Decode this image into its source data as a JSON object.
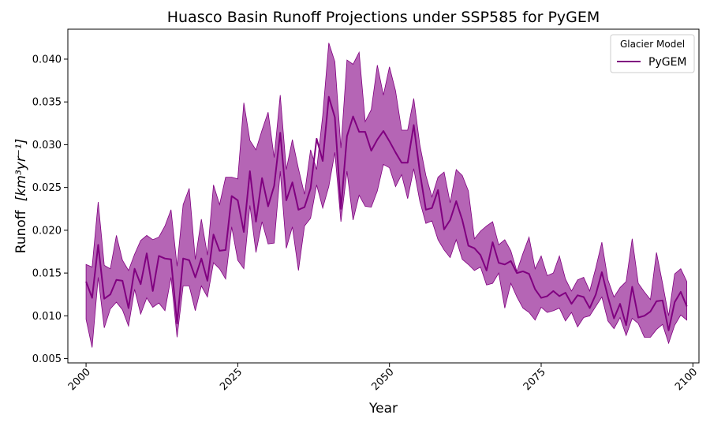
{
  "chart_data": {
    "type": "line",
    "title": "Huasco Basin Runoff Projections under SSP585 for PyGEM",
    "xlabel": "Year",
    "ylabel": "Runoff",
    "ylabel_unit": "[km³yr⁻¹]",
    "xlim": [
      1997,
      2101
    ],
    "ylim": [
      0.0045,
      0.0435
    ],
    "xticks": [
      2000,
      2025,
      2050,
      2075,
      2100
    ],
    "yticks": [
      0.005,
      0.01,
      0.015,
      0.02,
      0.025,
      0.03,
      0.035,
      0.04
    ],
    "ytick_labels": [
      "0.005",
      "0.010",
      "0.015",
      "0.020",
      "0.025",
      "0.030",
      "0.035",
      "0.040"
    ],
    "grid": false,
    "legend": {
      "title": "Glacier Model",
      "position": "top-right"
    },
    "colors": {
      "line": "#800080",
      "band": "#b565b5"
    },
    "series": [
      {
        "name": "PyGEM",
        "x": [
          2000,
          2001,
          2002,
          2003,
          2004,
          2005,
          2006,
          2007,
          2008,
          2009,
          2010,
          2011,
          2012,
          2013,
          2014,
          2015,
          2016,
          2017,
          2018,
          2019,
          2020,
          2021,
          2022,
          2023,
          2024,
          2025,
          2026,
          2027,
          2028,
          2029,
          2030,
          2031,
          2032,
          2033,
          2034,
          2035,
          2036,
          2037,
          2038,
          2039,
          2040,
          2041,
          2042,
          2043,
          2044,
          2045,
          2046,
          2047,
          2048,
          2049,
          2050,
          2051,
          2052,
          2053,
          2054,
          2055,
          2056,
          2057,
          2058,
          2059,
          2060,
          2061,
          2062,
          2063,
          2064,
          2065,
          2066,
          2067,
          2068,
          2069,
          2070,
          2071,
          2072,
          2073,
          2074,
          2075,
          2076,
          2077,
          2078,
          2079,
          2080,
          2081,
          2082,
          2083,
          2084,
          2085,
          2086,
          2087,
          2088,
          2089,
          2090,
          2091,
          2092,
          2093,
          2094,
          2095,
          2096,
          2097,
          2098,
          2099
        ],
        "values": [
          0.014,
          0.0121,
          0.0183,
          0.012,
          0.0125,
          0.0142,
          0.0141,
          0.0109,
          0.0155,
          0.0137,
          0.0173,
          0.0129,
          0.017,
          0.0167,
          0.0166,
          0.0091,
          0.0167,
          0.0165,
          0.0145,
          0.0167,
          0.0141,
          0.0195,
          0.0176,
          0.0177,
          0.024,
          0.0235,
          0.0198,
          0.0269,
          0.021,
          0.0261,
          0.0228,
          0.0252,
          0.0314,
          0.0235,
          0.0256,
          0.0224,
          0.0227,
          0.0249,
          0.0307,
          0.0281,
          0.0356,
          0.0332,
          0.0225,
          0.031,
          0.0333,
          0.0315,
          0.0315,
          0.0293,
          0.0306,
          0.0316,
          0.0304,
          0.0291,
          0.0279,
          0.0279,
          0.0323,
          0.0268,
          0.0224,
          0.0226,
          0.0247,
          0.0201,
          0.0212,
          0.0234,
          0.0212,
          0.0182,
          0.0179,
          0.0171,
          0.0153,
          0.0186,
          0.0162,
          0.016,
          0.0164,
          0.015,
          0.0152,
          0.0149,
          0.0131,
          0.0121,
          0.0123,
          0.0129,
          0.0123,
          0.0127,
          0.0114,
          0.0124,
          0.0122,
          0.0109,
          0.0125,
          0.0151,
          0.0122,
          0.0097,
          0.0114,
          0.0089,
          0.0134,
          0.0098,
          0.01,
          0.0105,
          0.0117,
          0.0118,
          0.0083,
          0.0116,
          0.0128,
          0.0111
        ],
        "lower": [
          0.0096,
          0.0063,
          0.0145,
          0.0086,
          0.0108,
          0.0116,
          0.0107,
          0.0088,
          0.0131,
          0.0102,
          0.0121,
          0.011,
          0.0115,
          0.0106,
          0.0145,
          0.0075,
          0.0135,
          0.0135,
          0.0106,
          0.0135,
          0.0122,
          0.0162,
          0.0155,
          0.0143,
          0.0204,
          0.0165,
          0.0155,
          0.0229,
          0.0174,
          0.021,
          0.0184,
          0.0185,
          0.0269,
          0.0179,
          0.0204,
          0.0153,
          0.0205,
          0.0214,
          0.0253,
          0.0226,
          0.0251,
          0.0291,
          0.021,
          0.0269,
          0.0212,
          0.0241,
          0.0228,
          0.0227,
          0.0246,
          0.0277,
          0.0273,
          0.0251,
          0.0265,
          0.0237,
          0.0272,
          0.0234,
          0.0208,
          0.0211,
          0.0189,
          0.0177,
          0.0168,
          0.0189,
          0.0166,
          0.016,
          0.0153,
          0.0157,
          0.0136,
          0.0138,
          0.015,
          0.0109,
          0.0138,
          0.0122,
          0.0109,
          0.0104,
          0.0095,
          0.011,
          0.0104,
          0.0106,
          0.0109,
          0.0094,
          0.0104,
          0.0087,
          0.0098,
          0.01,
          0.0111,
          0.0122,
          0.0094,
          0.0085,
          0.0098,
          0.0077,
          0.0097,
          0.0091,
          0.0075,
          0.0075,
          0.0084,
          0.009,
          0.0068,
          0.0089,
          0.0101,
          0.0095
        ],
        "upper": [
          0.016,
          0.0157,
          0.0233,
          0.0159,
          0.0155,
          0.0194,
          0.0165,
          0.0153,
          0.0172,
          0.0188,
          0.0194,
          0.0189,
          0.0192,
          0.0205,
          0.0224,
          0.0158,
          0.023,
          0.0249,
          0.0166,
          0.0213,
          0.0171,
          0.0253,
          0.023,
          0.0262,
          0.0262,
          0.026,
          0.0349,
          0.0305,
          0.0294,
          0.0317,
          0.0338,
          0.0285,
          0.0358,
          0.0271,
          0.0306,
          0.0272,
          0.0242,
          0.0294,
          0.0271,
          0.0334,
          0.0419,
          0.0397,
          0.0296,
          0.0399,
          0.0394,
          0.0408,
          0.0327,
          0.0341,
          0.0393,
          0.0358,
          0.0391,
          0.0363,
          0.0317,
          0.0317,
          0.0354,
          0.03,
          0.0264,
          0.0239,
          0.0262,
          0.0268,
          0.0232,
          0.0271,
          0.0264,
          0.0246,
          0.019,
          0.0199,
          0.0205,
          0.021,
          0.0183,
          0.0189,
          0.0176,
          0.0152,
          0.0173,
          0.0192,
          0.0155,
          0.017,
          0.0147,
          0.015,
          0.017,
          0.0143,
          0.0129,
          0.0142,
          0.0145,
          0.0129,
          0.0156,
          0.0186,
          0.0142,
          0.0122,
          0.0133,
          0.014,
          0.019,
          0.0138,
          0.0128,
          0.0119,
          0.0174,
          0.0138,
          0.01,
          0.0149,
          0.0155,
          0.014
        ]
      }
    ]
  }
}
